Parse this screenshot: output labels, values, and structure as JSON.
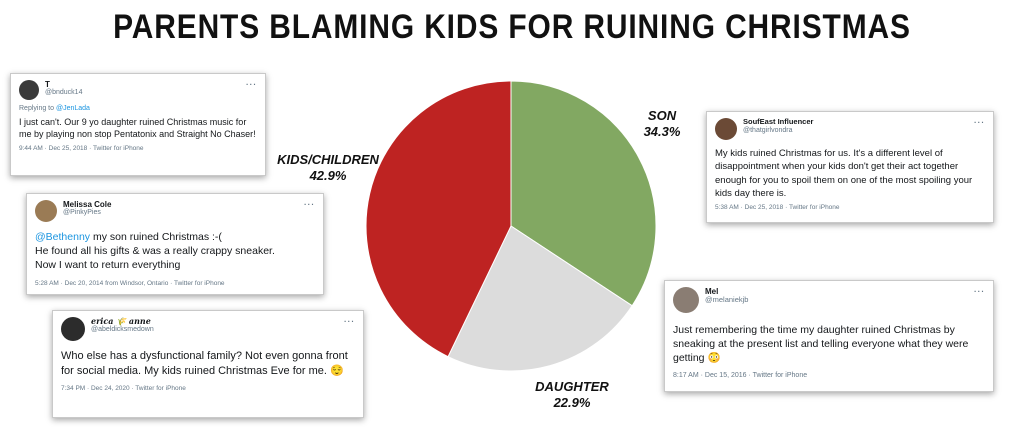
{
  "chart_data": {
    "type": "pie",
    "title": "PARENTS BLAMING KIDS FOR RUINING CHRISTMAS",
    "slices": [
      {
        "label": "SON",
        "value": 34.3,
        "value_label": "34.3%",
        "color": "#82a862"
      },
      {
        "label": "DAUGHTER",
        "value": 22.9,
        "value_label": "22.9%",
        "color": "#dcdcdc"
      },
      {
        "label": "KIDS/CHILDREN",
        "value": 42.9,
        "value_label": "42.9%",
        "color": "#be2322"
      }
    ]
  },
  "tweets": [
    {
      "name": "T",
      "handle": "@bnduck14",
      "replying_prefix": "Replying to",
      "replying_handle": "@JenLada",
      "text": "I just can't. Our 9 yo daughter ruined Christmas music for me by playing non stop Pentatonix and Straight No Chaser!",
      "meta": "9:44 AM · Dec 25, 2018 · Twitter for iPhone",
      "more": "···",
      "avatar_color": "#3a3a3a"
    },
    {
      "name": "Melissa Cole",
      "handle": "@PinkyPies",
      "mention": "@Bethenny",
      "text": " my son ruined Christmas :-(\nHe found all his gifts & was a really crappy sneaker.\nNow I want to return everything",
      "meta": "5:28 AM · Dec 20, 2014 from Windsor, Ontario · Twitter for iPhone",
      "more": "···",
      "avatar_color": "#9a7b55"
    },
    {
      "name": "erica 🌾 anne",
      "handle": "@abeldicksmedown",
      "text": "Who else has a dysfunctional family? Not even gonna front for social media. My kids ruined Christmas Eve for me. 😌",
      "meta": "7:34 PM · Dec 24, 2020 · Twitter for iPhone",
      "more": "···",
      "avatar_color": "#2c2c2c"
    },
    {
      "name": "SoufEast Influencer",
      "handle": "@thatgirlvondra",
      "text": "My kids ruined Christmas for us. It's a different level of disappointment when your kids don't get their act together enough for you to spoil them on one of the most spoiling your kids day there is.",
      "meta": "5:38 AM · Dec 25, 2018 · Twitter for iPhone",
      "more": "···",
      "avatar_color": "#6b4a36"
    },
    {
      "name": "Mel",
      "handle": "@melaniekjb",
      "text": "Just remembering the time my daughter ruined Christmas by sneaking at the present list and telling everyone what they were getting 😳",
      "meta": "8:17 AM · Dec 15, 2016 · Twitter for iPhone",
      "more": "···",
      "avatar_color": "#8a7d73"
    }
  ]
}
